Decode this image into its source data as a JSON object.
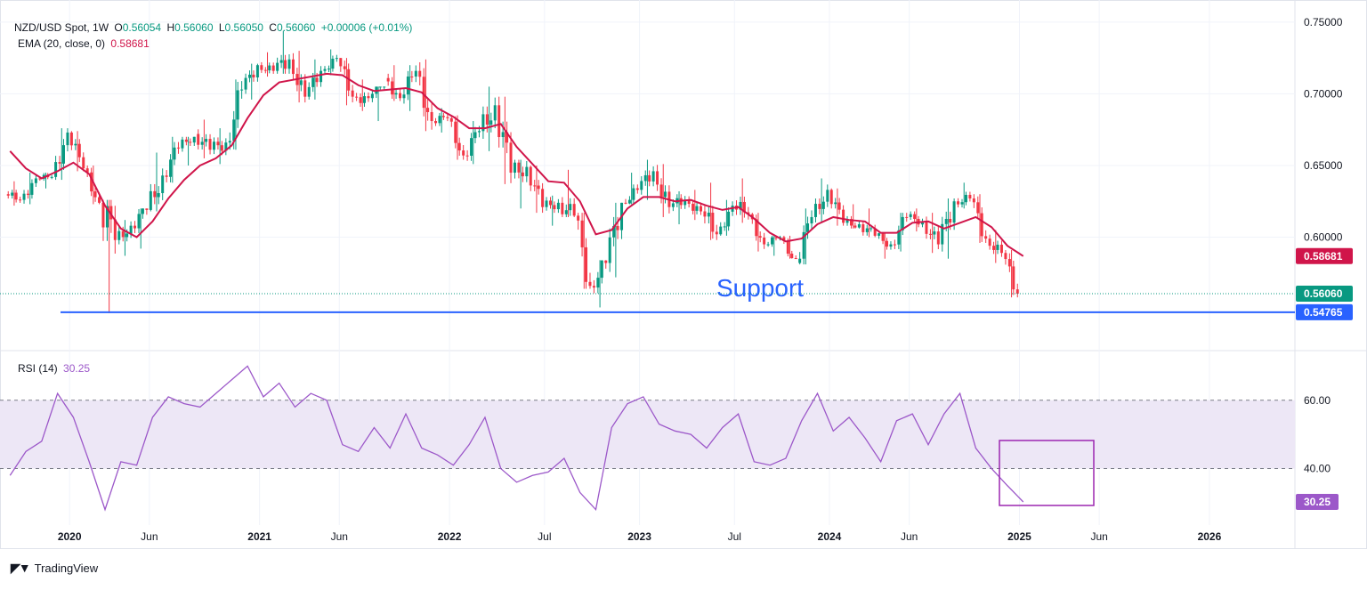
{
  "header": {
    "symbol": "NZD/USD Spot, 1W",
    "open_label": "O",
    "open": "0.56054",
    "high_label": "H",
    "high": "0.56060",
    "low_label": "L",
    "low": "0.56050",
    "close_label": "C",
    "close": "0.56060",
    "change": "+0.00006 (+0.01%)",
    "ema_label": "EMA (20, close, 0)",
    "ema_value": "0.58681",
    "rsi_label": "RSI (14)",
    "rsi_value": "30.25"
  },
  "branding": {
    "logo_text": "TradingView"
  },
  "colors": {
    "up": "#089981",
    "down": "#f23645",
    "ema": "#d0154a",
    "rsi": "#9c58c9",
    "support": "#2962ff",
    "rsi_band": "#ede7f6"
  },
  "chart_data": [
    {
      "type": "candlestick",
      "title": "NZD/USD Spot, 1W",
      "x_ticks": [
        "2020",
        "Jun",
        "2021",
        "Jun",
        "2022",
        "Jul",
        "2023",
        "Jul",
        "2024",
        "Jun",
        "2025",
        "Jun",
        "2026"
      ],
      "y_ticks": [
        "0.75000",
        "0.70000",
        "0.65000",
        "0.60000"
      ],
      "ylim": [
        0.537,
        0.758
      ],
      "price_markers": [
        {
          "label": "0.58681",
          "value": 0.58681,
          "color": "#d0154a"
        },
        {
          "label": "0.56060",
          "value": 0.5606,
          "color": "#089981"
        },
        {
          "label": "0.54765",
          "value": 0.54765,
          "color": "#2962ff"
        }
      ],
      "support": {
        "label": "Support",
        "value": 0.54765
      },
      "ema_series": {
        "name": "EMA (20, close, 0)",
        "points": [
          [
            "2019-09",
            0.66
          ],
          [
            "2019-10",
            0.648
          ],
          [
            "2019-11",
            0.641
          ],
          [
            "2019-12",
            0.646
          ],
          [
            "2020-01",
            0.652
          ],
          [
            "2020-02",
            0.644
          ],
          [
            "2020-03",
            0.622
          ],
          [
            "2020-04",
            0.606
          ],
          [
            "2020-05",
            0.6
          ],
          [
            "2020-06",
            0.611
          ],
          [
            "2020-07",
            0.627
          ],
          [
            "2020-08",
            0.64
          ],
          [
            "2020-09",
            0.65
          ],
          [
            "2020-10",
            0.655
          ],
          [
            "2020-11",
            0.664
          ],
          [
            "2020-12",
            0.683
          ],
          [
            "2021-01",
            0.699
          ],
          [
            "2021-02",
            0.708
          ],
          [
            "2021-03",
            0.71
          ],
          [
            "2021-04",
            0.712
          ],
          [
            "2021-05",
            0.714
          ],
          [
            "2021-06",
            0.713
          ],
          [
            "2021-07",
            0.706
          ],
          [
            "2021-08",
            0.702
          ],
          [
            "2021-09",
            0.703
          ],
          [
            "2021-10",
            0.704
          ],
          [
            "2021-11",
            0.701
          ],
          [
            "2021-12",
            0.69
          ],
          [
            "2022-01",
            0.684
          ],
          [
            "2022-02",
            0.676
          ],
          [
            "2022-03",
            0.676
          ],
          [
            "2022-04",
            0.679
          ],
          [
            "2022-05",
            0.663
          ],
          [
            "2022-06",
            0.651
          ],
          [
            "2022-07",
            0.639
          ],
          [
            "2022-08",
            0.638
          ],
          [
            "2022-09",
            0.625
          ],
          [
            "2022-10",
            0.602
          ],
          [
            "2022-11",
            0.605
          ],
          [
            "2022-12",
            0.62
          ],
          [
            "2023-01",
            0.628
          ],
          [
            "2023-02",
            0.628
          ],
          [
            "2023-03",
            0.625
          ],
          [
            "2023-04",
            0.626
          ],
          [
            "2023-05",
            0.622
          ],
          [
            "2023-06",
            0.619
          ],
          [
            "2023-07",
            0.621
          ],
          [
            "2023-08",
            0.613
          ],
          [
            "2023-09",
            0.603
          ],
          [
            "2023-10",
            0.597
          ],
          [
            "2023-11",
            0.599
          ],
          [
            "2023-12",
            0.609
          ],
          [
            "2024-01",
            0.614
          ],
          [
            "2024-02",
            0.612
          ],
          [
            "2024-03",
            0.611
          ],
          [
            "2024-04",
            0.603
          ],
          [
            "2024-05",
            0.603
          ],
          [
            "2024-06",
            0.61
          ],
          [
            "2024-07",
            0.611
          ],
          [
            "2024-08",
            0.606
          ],
          [
            "2024-09",
            0.61
          ],
          [
            "2024-10",
            0.614
          ],
          [
            "2024-11",
            0.607
          ],
          [
            "2024-12",
            0.594
          ],
          [
            "2025-01",
            0.5868
          ]
        ]
      },
      "candles_monthly_approx": [
        [
          "2019-09",
          0.63,
          0.639,
          0.622,
          0.626
        ],
        [
          "2019-10",
          0.626,
          0.645,
          0.623,
          0.641
        ],
        [
          "2019-11",
          0.641,
          0.645,
          0.634,
          0.642
        ],
        [
          "2019-12",
          0.642,
          0.676,
          0.64,
          0.673
        ],
        [
          "2020-01",
          0.673,
          0.674,
          0.646,
          0.648
        ],
        [
          "2020-02",
          0.648,
          0.65,
          0.623,
          0.624
        ],
        [
          "2020-03",
          0.624,
          0.626,
          0.547,
          0.598
        ],
        [
          "2020-04",
          0.598,
          0.612,
          0.587,
          0.608
        ],
        [
          "2020-05",
          0.608,
          0.62,
          0.592,
          0.619
        ],
        [
          "2020-06",
          0.619,
          0.659,
          0.618,
          0.643
        ],
        [
          "2020-07",
          0.643,
          0.67,
          0.638,
          0.662
        ],
        [
          "2020-08",
          0.662,
          0.67,
          0.65,
          0.672
        ],
        [
          "2020-09",
          0.672,
          0.682,
          0.655,
          0.661
        ],
        [
          "2020-10",
          0.661,
          0.676,
          0.651,
          0.666
        ],
        [
          "2020-11",
          0.666,
          0.71,
          0.661,
          0.703
        ],
        [
          "2020-12",
          0.703,
          0.721,
          0.696,
          0.72
        ],
        [
          "2021-01",
          0.72,
          0.729,
          0.712,
          0.716
        ],
        [
          "2021-02",
          0.716,
          0.744,
          0.714,
          0.724
        ],
        [
          "2021-03",
          0.724,
          0.73,
          0.694,
          0.698
        ],
        [
          "2021-04",
          0.698,
          0.724,
          0.696,
          0.716
        ],
        [
          "2021-05",
          0.716,
          0.731,
          0.713,
          0.725
        ],
        [
          "2021-06",
          0.725,
          0.725,
          0.692,
          0.698
        ],
        [
          "2021-07",
          0.698,
          0.71,
          0.688,
          0.697
        ],
        [
          "2021-08",
          0.697,
          0.705,
          0.681,
          0.711
        ],
        [
          "2021-09",
          0.711,
          0.72,
          0.695,
          0.697
        ],
        [
          "2021-10",
          0.697,
          0.72,
          0.688,
          0.716
        ],
        [
          "2021-11",
          0.716,
          0.724,
          0.674,
          0.681
        ],
        [
          "2021-12",
          0.681,
          0.69,
          0.673,
          0.683
        ],
        [
          "2022-01",
          0.683,
          0.685,
          0.654,
          0.657
        ],
        [
          "2022-02",
          0.657,
          0.681,
          0.651,
          0.674
        ],
        [
          "2022-03",
          0.674,
          0.705,
          0.66,
          0.692
        ],
        [
          "2022-04",
          0.692,
          0.698,
          0.637,
          0.645
        ],
        [
          "2022-05",
          0.645,
          0.654,
          0.62,
          0.649
        ],
        [
          "2022-06",
          0.649,
          0.65,
          0.617,
          0.621
        ],
        [
          "2022-07",
          0.621,
          0.629,
          0.608,
          0.624
        ],
        [
          "2022-08",
          0.624,
          0.647,
          0.614,
          0.615
        ],
        [
          "2022-09",
          0.615,
          0.617,
          0.564,
          0.566
        ],
        [
          "2022-10",
          0.566,
          0.584,
          0.551,
          0.582
        ],
        [
          "2022-11",
          0.582,
          0.624,
          0.572,
          0.624
        ],
        [
          "2022-12",
          0.624,
          0.645,
          0.623,
          0.633
        ],
        [
          "2023-01",
          0.633,
          0.654,
          0.626,
          0.646
        ],
        [
          "2023-02",
          0.646,
          0.651,
          0.614,
          0.621
        ],
        [
          "2023-03",
          0.621,
          0.632,
          0.609,
          0.626
        ],
        [
          "2023-04",
          0.626,
          0.633,
          0.612,
          0.618
        ],
        [
          "2023-05",
          0.618,
          0.638,
          0.598,
          0.602
        ],
        [
          "2023-06",
          0.602,
          0.626,
          0.601,
          0.622
        ],
        [
          "2023-07",
          0.622,
          0.641,
          0.61,
          0.616
        ],
        [
          "2023-08",
          0.616,
          0.617,
          0.59,
          0.595
        ],
        [
          "2023-09",
          0.595,
          0.601,
          0.587,
          0.6
        ],
        [
          "2023-10",
          0.6,
          0.601,
          0.585,
          0.582
        ],
        [
          "2023-11",
          0.582,
          0.62,
          0.581,
          0.614
        ],
        [
          "2023-12",
          0.614,
          0.641,
          0.61,
          0.633
        ],
        [
          "2024-01",
          0.633,
          0.634,
          0.608,
          0.61
        ],
        [
          "2024-02",
          0.61,
          0.623,
          0.606,
          0.609
        ],
        [
          "2024-03",
          0.609,
          0.62,
          0.6,
          0.601
        ],
        [
          "2024-04",
          0.601,
          0.603,
          0.585,
          0.595
        ],
        [
          "2024-05",
          0.595,
          0.617,
          0.59,
          0.614
        ],
        [
          "2024-06",
          0.614,
          0.62,
          0.604,
          0.611
        ],
        [
          "2024-07",
          0.611,
          0.617,
          0.589,
          0.595
        ],
        [
          "2024-08",
          0.595,
          0.627,
          0.585,
          0.625
        ],
        [
          "2024-09",
          0.625,
          0.638,
          0.62,
          0.627
        ],
        [
          "2024-10",
          0.627,
          0.63,
          0.596,
          0.599
        ],
        [
          "2024-11",
          0.599,
          0.605,
          0.582,
          0.589
        ],
        [
          "2024-12",
          0.589,
          0.591,
          0.558,
          0.5606
        ]
      ]
    },
    {
      "type": "line",
      "title": "RSI (14)",
      "y_ticks": [
        "60.00",
        "40.00"
      ],
      "ylim": [
        24,
        74
      ],
      "band": [
        40,
        60
      ],
      "current": {
        "label": "30.25",
        "value": 30.25
      },
      "series": [
        {
          "name": "RSI (14)",
          "points": [
            [
              "2019-09",
              38
            ],
            [
              "2019-10",
              45
            ],
            [
              "2019-11",
              48
            ],
            [
              "2019-12",
              62
            ],
            [
              "2020-01",
              55
            ],
            [
              "2020-02",
              42
            ],
            [
              "2020-03",
              28
            ],
            [
              "2020-04",
              42
            ],
            [
              "2020-05",
              41
            ],
            [
              "2020-06",
              55
            ],
            [
              "2020-07",
              61
            ],
            [
              "2020-08",
              59
            ],
            [
              "2020-09",
              58
            ],
            [
              "2020-10",
              62
            ],
            [
              "2020-11",
              66
            ],
            [
              "2020-12",
              70
            ],
            [
              "2021-01",
              61
            ],
            [
              "2021-02",
              65
            ],
            [
              "2021-03",
              58
            ],
            [
              "2021-04",
              62
            ],
            [
              "2021-05",
              60
            ],
            [
              "2021-06",
              47
            ],
            [
              "2021-07",
              45
            ],
            [
              "2021-08",
              52
            ],
            [
              "2021-09",
              46
            ],
            [
              "2021-10",
              56
            ],
            [
              "2021-11",
              46
            ],
            [
              "2021-12",
              44
            ],
            [
              "2022-01",
              41
            ],
            [
              "2022-02",
              47
            ],
            [
              "2022-03",
              55
            ],
            [
              "2022-04",
              40
            ],
            [
              "2022-05",
              36
            ],
            [
              "2022-06",
              38
            ],
            [
              "2022-07",
              39
            ],
            [
              "2022-08",
              43
            ],
            [
              "2022-09",
              33
            ],
            [
              "2022-10",
              28
            ],
            [
              "2022-11",
              52
            ],
            [
              "2022-12",
              59
            ],
            [
              "2023-01",
              61
            ],
            [
              "2023-02",
              53
            ],
            [
              "2023-03",
              51
            ],
            [
              "2023-04",
              50
            ],
            [
              "2023-05",
              46
            ],
            [
              "2023-06",
              52
            ],
            [
              "2023-07",
              56
            ],
            [
              "2023-08",
              42
            ],
            [
              "2023-09",
              41
            ],
            [
              "2023-10",
              43
            ],
            [
              "2023-11",
              54
            ],
            [
              "2023-12",
              62
            ],
            [
              "2024-01",
              51
            ],
            [
              "2024-02",
              55
            ],
            [
              "2024-03",
              49
            ],
            [
              "2024-04",
              42
            ],
            [
              "2024-05",
              54
            ],
            [
              "2024-06",
              56
            ],
            [
              "2024-07",
              47
            ],
            [
              "2024-08",
              56
            ],
            [
              "2024-09",
              62
            ],
            [
              "2024-10",
              46
            ],
            [
              "2024-11",
              40
            ],
            [
              "2024-12",
              35
            ],
            [
              "2025-01",
              30.25
            ]
          ]
        }
      ]
    }
  ]
}
